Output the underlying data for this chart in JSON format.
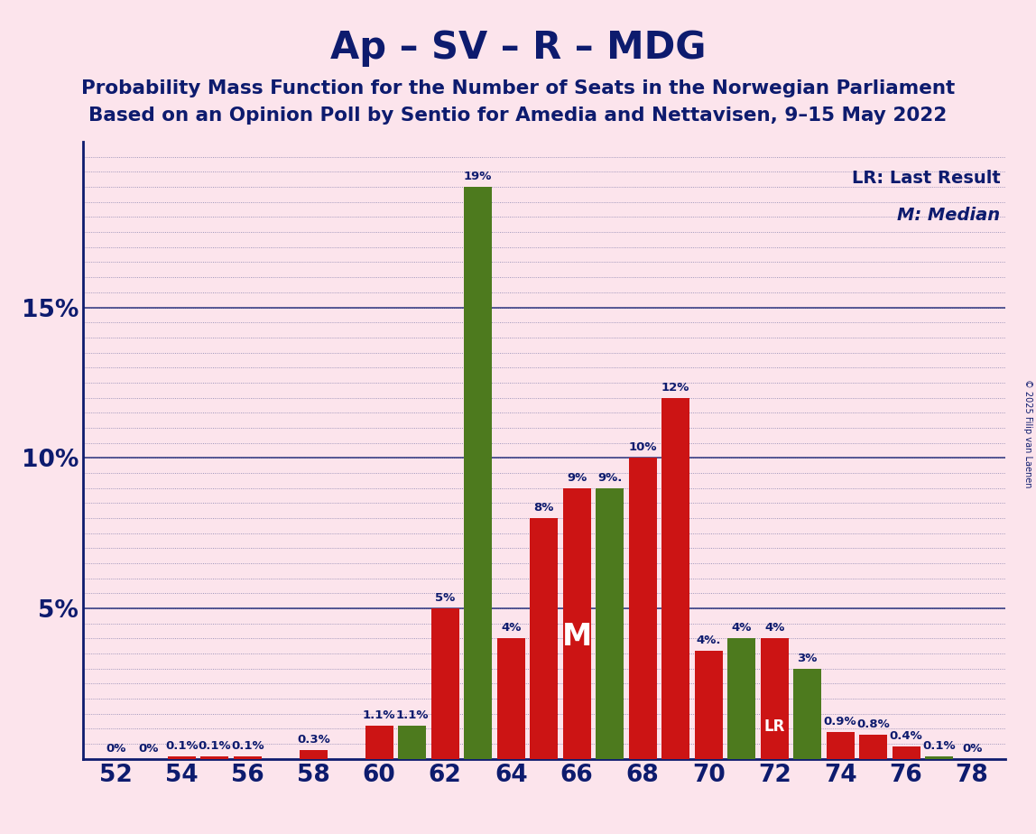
{
  "title": "Ap – SV – R – MDG",
  "subtitle1": "Probability Mass Function for the Number of Seats in the Norwegian Parliament",
  "subtitle2": "Based on an Opinion Poll by Sentio for Amedia and Nettavisen, 9–15 May 2022",
  "legend_lr": "LR: Last Result",
  "legend_m": "M: Median",
  "copyright": "© 2025 Filip van Laenen",
  "background_color": "#fce4ec",
  "bar_color_red": "#cc1414",
  "bar_color_green": "#4d7a1e",
  "title_color": "#0d1b6e",
  "grid_color": "#0d1b6e",
  "seats": [
    52,
    53,
    54,
    55,
    56,
    57,
    58,
    59,
    60,
    61,
    62,
    63,
    64,
    65,
    66,
    67,
    68,
    69,
    70,
    71,
    72,
    73,
    74,
    75,
    76,
    77,
    78
  ],
  "values": [
    0.0,
    0.0,
    0.1,
    0.1,
    0.1,
    0.0,
    0.3,
    0.0,
    1.1,
    1.1,
    5.0,
    19.0,
    4.0,
    8.0,
    9.0,
    9.0,
    10.0,
    12.0,
    3.6,
    4.0,
    4.0,
    3.0,
    0.9,
    0.8,
    0.4,
    0.1,
    0.0
  ],
  "colors": [
    "R",
    "R",
    "R",
    "R",
    "R",
    "R",
    "R",
    "R",
    "R",
    "G",
    "R",
    "G",
    "R",
    "R",
    "R",
    "G",
    "R",
    "R",
    "R",
    "G",
    "R",
    "G",
    "R",
    "R",
    "R",
    "G",
    "R"
  ],
  "labels": [
    "0%",
    "0%",
    "0.1%",
    "0.1%",
    "0.1%",
    "",
    "0.3%",
    "",
    "1.1%",
    "1.1%",
    "5%",
    "19%",
    "4%",
    "8%",
    "9%",
    "9%.",
    "10%",
    "12%",
    "4%.",
    "4%",
    "4%",
    "3%",
    "0.9%",
    "0.8%",
    "0.4%",
    "0.1%",
    "0%"
  ],
  "median_seat_idx": 14,
  "lr_seat_idx": 20,
  "xlim": [
    51.0,
    79.0
  ],
  "ylim": [
    0,
    20.5
  ],
  "ytick_vals": [
    5,
    10,
    15
  ],
  "ytick_labels": [
    "5%",
    "10%",
    "15%"
  ],
  "bar_width": 0.85,
  "title_fontsize": 30,
  "subtitle_fontsize": 15.5,
  "tick_fontsize": 19,
  "label_fontsize": 9.5
}
